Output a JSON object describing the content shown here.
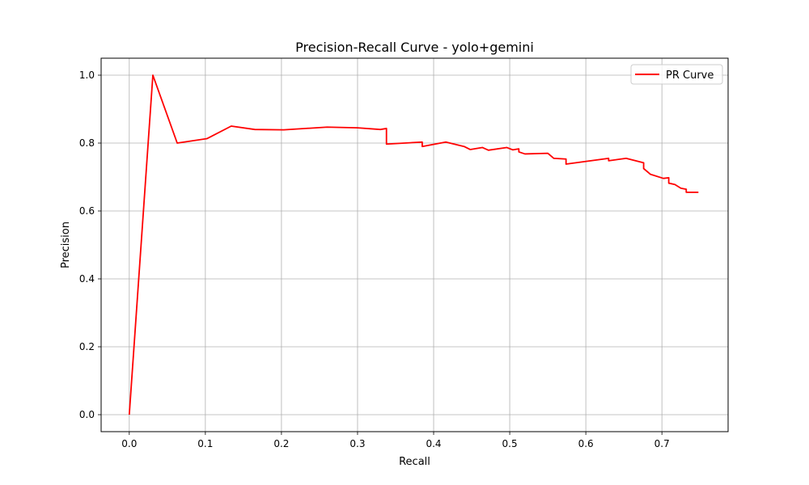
{
  "chart_data": {
    "type": "line",
    "title": "Precision-Recall Curve - yolo+gemini",
    "xlabel": "Recall",
    "ylabel": "Precision",
    "xlim": [
      -0.037,
      0.787
    ],
    "ylim": [
      -0.05,
      1.05
    ],
    "grid": true,
    "xticks": [
      0.0,
      0.1,
      0.2,
      0.3,
      0.4,
      0.5,
      0.6,
      0.7
    ],
    "xtick_labels": [
      "0.0",
      "0.1",
      "0.2",
      "0.3",
      "0.4",
      "0.5",
      "0.6",
      "0.7"
    ],
    "yticks": [
      0.0,
      0.2,
      0.4,
      0.6,
      0.8,
      1.0
    ],
    "ytick_labels": [
      "0.0",
      "0.2",
      "0.4",
      "0.6",
      "0.8",
      "1.0"
    ],
    "legend_position": "top-right",
    "series": [
      {
        "name": "PR Curve",
        "color": "#ff0000",
        "x": [
          0.0,
          0.031,
          0.063,
          0.102,
          0.134,
          0.165,
          0.203,
          0.26,
          0.3,
          0.33,
          0.338,
          0.338,
          0.385,
          0.385,
          0.416,
          0.44,
          0.448,
          0.464,
          0.472,
          0.496,
          0.504,
          0.512,
          0.512,
          0.52,
          0.55,
          0.558,
          0.574,
          0.574,
          0.63,
          0.63,
          0.653,
          0.676,
          0.676,
          0.685,
          0.702,
          0.709,
          0.709,
          0.717,
          0.725,
          0.732,
          0.732,
          0.748
        ],
        "y": [
          0.0,
          1.0,
          0.8,
          0.813,
          0.85,
          0.84,
          0.839,
          0.847,
          0.845,
          0.84,
          0.843,
          0.797,
          0.803,
          0.79,
          0.803,
          0.79,
          0.781,
          0.787,
          0.779,
          0.787,
          0.78,
          0.783,
          0.774,
          0.768,
          0.77,
          0.755,
          0.753,
          0.738,
          0.755,
          0.748,
          0.755,
          0.742,
          0.725,
          0.708,
          0.696,
          0.698,
          0.682,
          0.678,
          0.667,
          0.664,
          0.655,
          0.655
        ]
      }
    ]
  }
}
